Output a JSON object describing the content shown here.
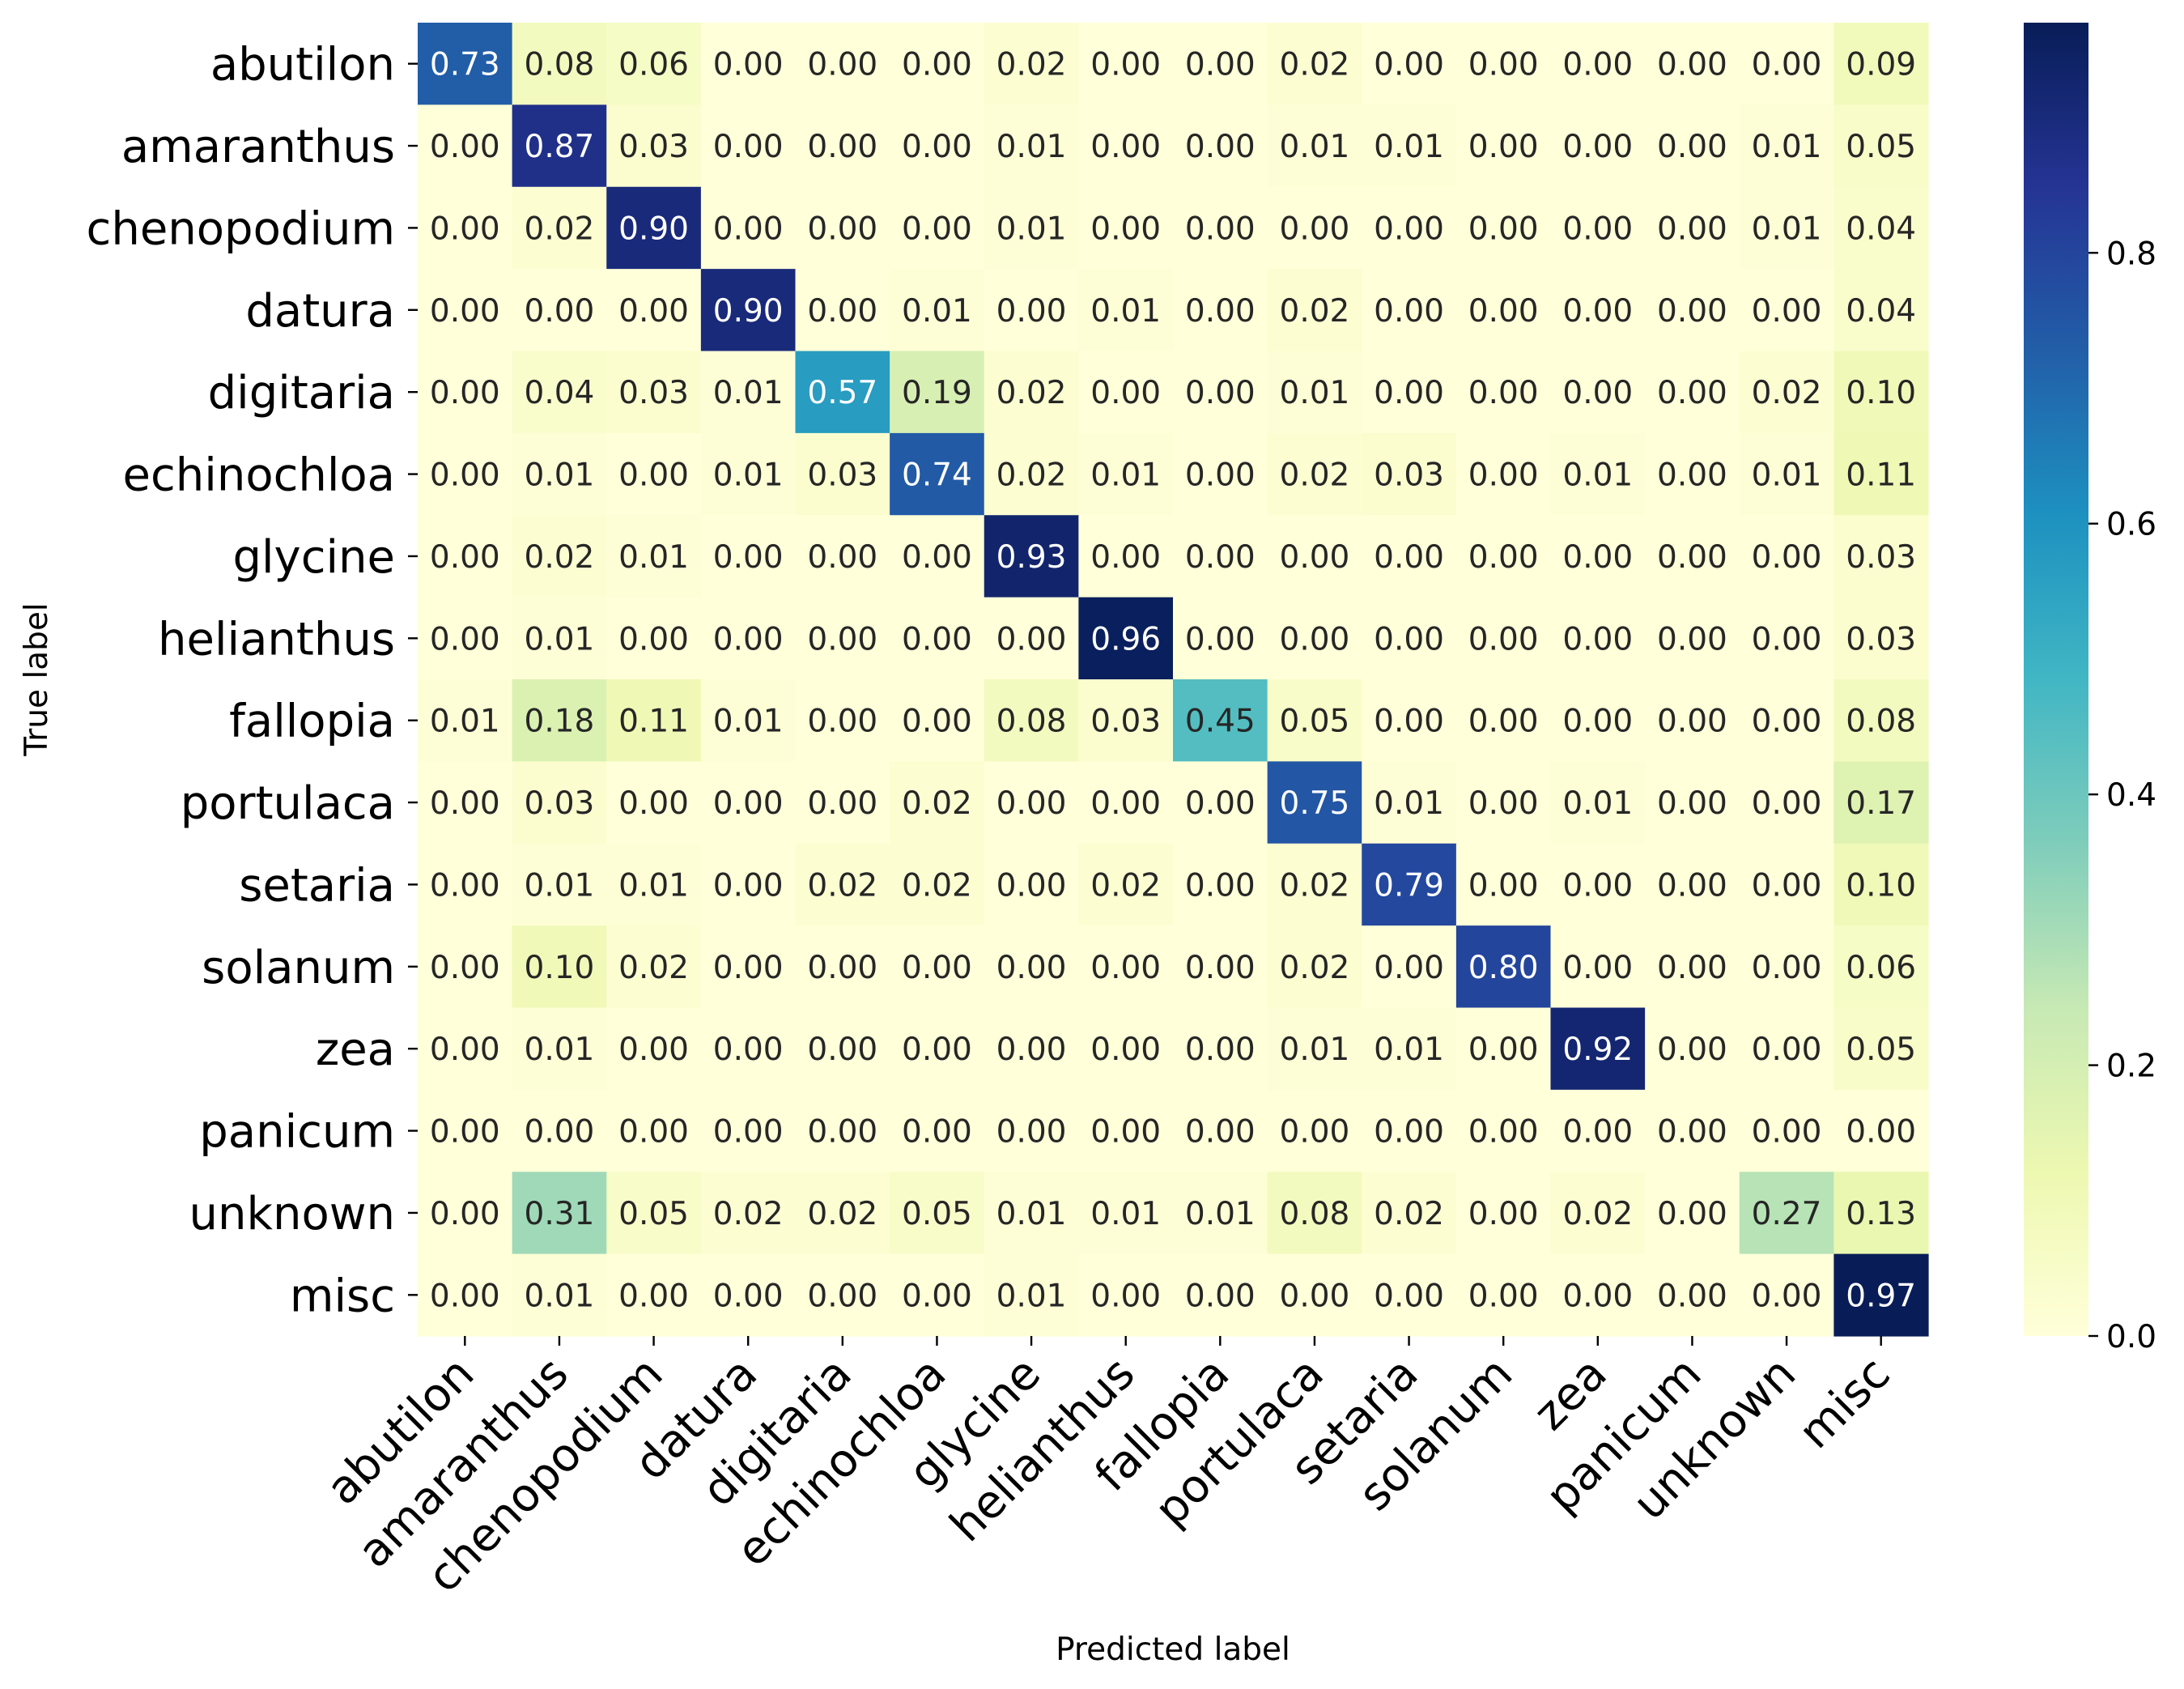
{
  "chart_data": {
    "type": "heatmap",
    "title": "",
    "xlabel": "Predicted label",
    "ylabel": "True label",
    "x_categories": [
      "abutilon",
      "amaranthus",
      "chenopodium",
      "datura",
      "digitaria",
      "echinochloa",
      "glycine",
      "helianthus",
      "fallopia",
      "portulaca",
      "setaria",
      "solanum",
      "zea",
      "panicum",
      "unknown",
      "misc"
    ],
    "y_categories": [
      "abutilon",
      "amaranthus",
      "chenopodium",
      "datura",
      "digitaria",
      "echinochloa",
      "glycine",
      "helianthus",
      "fallopia",
      "portulaca",
      "setaria",
      "solanum",
      "zea",
      "panicum",
      "unknown",
      "misc"
    ],
    "values": [
      [
        0.73,
        0.08,
        0.06,
        0.0,
        0.0,
        0.0,
        0.02,
        0.0,
        0.0,
        0.02,
        0.0,
        0.0,
        0.0,
        0.0,
        0.0,
        0.09
      ],
      [
        0.0,
        0.87,
        0.03,
        0.0,
        0.0,
        0.0,
        0.01,
        0.0,
        0.0,
        0.01,
        0.01,
        0.0,
        0.0,
        0.0,
        0.01,
        0.05
      ],
      [
        0.0,
        0.02,
        0.9,
        0.0,
        0.0,
        0.0,
        0.01,
        0.0,
        0.0,
        0.0,
        0.0,
        0.0,
        0.0,
        0.0,
        0.01,
        0.04
      ],
      [
        0.0,
        0.0,
        0.0,
        0.9,
        0.0,
        0.01,
        0.0,
        0.01,
        0.0,
        0.02,
        0.0,
        0.0,
        0.0,
        0.0,
        0.0,
        0.04
      ],
      [
        0.0,
        0.04,
        0.03,
        0.01,
        0.57,
        0.19,
        0.02,
        0.0,
        0.0,
        0.01,
        0.0,
        0.0,
        0.0,
        0.0,
        0.02,
        0.1
      ],
      [
        0.0,
        0.01,
        0.0,
        0.01,
        0.03,
        0.74,
        0.02,
        0.01,
        0.0,
        0.02,
        0.03,
        0.0,
        0.01,
        0.0,
        0.01,
        0.11
      ],
      [
        0.0,
        0.02,
        0.01,
        0.0,
        0.0,
        0.0,
        0.93,
        0.0,
        0.0,
        0.0,
        0.0,
        0.0,
        0.0,
        0.0,
        0.0,
        0.03
      ],
      [
        0.0,
        0.01,
        0.0,
        0.0,
        0.0,
        0.0,
        0.0,
        0.96,
        0.0,
        0.0,
        0.0,
        0.0,
        0.0,
        0.0,
        0.0,
        0.03
      ],
      [
        0.01,
        0.18,
        0.11,
        0.01,
        0.0,
        0.0,
        0.08,
        0.03,
        0.45,
        0.05,
        0.0,
        0.0,
        0.0,
        0.0,
        0.0,
        0.08
      ],
      [
        0.0,
        0.03,
        0.0,
        0.0,
        0.0,
        0.02,
        0.0,
        0.0,
        0.0,
        0.75,
        0.01,
        0.0,
        0.01,
        0.0,
        0.0,
        0.17
      ],
      [
        0.0,
        0.01,
        0.01,
        0.0,
        0.02,
        0.02,
        0.0,
        0.02,
        0.0,
        0.02,
        0.79,
        0.0,
        0.0,
        0.0,
        0.0,
        0.1
      ],
      [
        0.0,
        0.1,
        0.02,
        0.0,
        0.0,
        0.0,
        0.0,
        0.0,
        0.0,
        0.02,
        0.0,
        0.8,
        0.0,
        0.0,
        0.0,
        0.06
      ],
      [
        0.0,
        0.01,
        0.0,
        0.0,
        0.0,
        0.0,
        0.0,
        0.0,
        0.0,
        0.01,
        0.01,
        0.0,
        0.92,
        0.0,
        0.0,
        0.05
      ],
      [
        0.0,
        0.0,
        0.0,
        0.0,
        0.0,
        0.0,
        0.0,
        0.0,
        0.0,
        0.0,
        0.0,
        0.0,
        0.0,
        0.0,
        0.0,
        0.0
      ],
      [
        0.0,
        0.31,
        0.05,
        0.02,
        0.02,
        0.05,
        0.01,
        0.01,
        0.01,
        0.08,
        0.02,
        0.0,
        0.02,
        0.0,
        0.27,
        0.13
      ],
      [
        0.0,
        0.01,
        0.0,
        0.0,
        0.0,
        0.0,
        0.01,
        0.0,
        0.0,
        0.0,
        0.0,
        0.0,
        0.0,
        0.0,
        0.0,
        0.97
      ]
    ],
    "value_format": "0.00",
    "colormap": "YlGnBu",
    "colormap_stops": [
      "#ffffd9",
      "#edf8b1",
      "#c7e9b4",
      "#7fcdbb",
      "#41b6c4",
      "#1d91c0",
      "#225ea8",
      "#253494",
      "#081d58"
    ],
    "vmin": 0.0,
    "vmax": 0.97,
    "colorbar": {
      "ticks": [
        0.0,
        0.2,
        0.4,
        0.6,
        0.8
      ],
      "tick_labels": [
        "0.0",
        "0.2",
        "0.4",
        "0.6",
        "0.8"
      ]
    }
  }
}
